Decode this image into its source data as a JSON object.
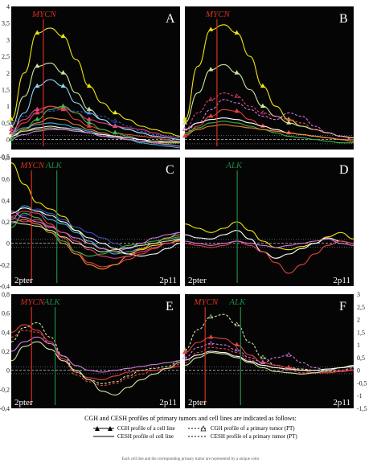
{
  "figure": {
    "legend_title": "CGH and CESH profiles of primary tumors and cell lines are indicated as follows:",
    "legend_items": [
      {
        "symbol": "solid-triangle",
        "label": "CGH profile of a cell line"
      },
      {
        "symbol": "solid-line",
        "label": "CESH profile of cell line"
      },
      {
        "symbol": "dashed-triangle",
        "label": "CGH profile of a primary tumor (PT)"
      },
      {
        "symbol": "dashed-line",
        "label": "CESH profile of a primary tumor (PT)"
      }
    ],
    "caption_fragment": "Each cell line and the corresponding primary tumor are represented by a unique color"
  },
  "colors": {
    "panel_bg": "#050505",
    "mycn": "#d9301e",
    "alk": "#1e8a4a",
    "baseline": "#d8d8d8"
  },
  "chart_data": [
    {
      "panel": "A",
      "type": "line",
      "ylim": [
        -0.3,
        4.0
      ],
      "yticks": [
        "4",
        "3,5",
        "3",
        "2,5",
        "2",
        "1,5",
        "1",
        "0,5",
        "0",
        "-0,5"
      ],
      "markers": [
        {
          "label": "MYCN",
          "x": 0.19,
          "color": "#d9301e"
        }
      ],
      "series": [
        {
          "values": [
            0.6,
            2.0,
            3.2,
            3.35,
            3.1,
            2.4,
            1.6,
            1.1,
            0.8,
            0.6,
            0.4,
            0.3,
            0.2,
            0.1
          ],
          "color": "#f2e60c",
          "marker": "triangle"
        },
        {
          "values": [
            0.4,
            1.3,
            2.2,
            2.3,
            2.0,
            1.4,
            0.9,
            0.6,
            0.4,
            0.3,
            0.2,
            0.1,
            0.05,
            0.0
          ],
          "color": "#cfe6a0",
          "marker": "triangle"
        },
        {
          "values": [
            0.2,
            0.8,
            1.6,
            1.8,
            1.6,
            1.1,
            0.8,
            0.6,
            0.4,
            0.3,
            0.2,
            0.1,
            0.05,
            0.0
          ],
          "color": "#8fd3f4",
          "marker": "triangle"
        },
        {
          "values": [
            0.3,
            0.6,
            0.9,
            1.0,
            0.95,
            0.8,
            0.6,
            0.5,
            0.4,
            0.35,
            0.3,
            0.2,
            0.1,
            0.05
          ],
          "color": "#e5407a",
          "marker": "triangle"
        },
        {
          "values": [
            0.5,
            0.7,
            0.8,
            0.85,
            0.9,
            0.85,
            0.8,
            0.7,
            0.55,
            0.4,
            0.25,
            0.15,
            0.1,
            0.05
          ],
          "color": "#3a4fc0",
          "marker": "triangle",
          "dashed": true
        },
        {
          "values": [
            0.2,
            0.5,
            0.8,
            1.0,
            0.9,
            0.6,
            0.4,
            0.3,
            0.2,
            0.15,
            0.1,
            0.05,
            0.0,
            -0.1
          ],
          "color": "#e64141",
          "marker": "triangle"
        },
        {
          "values": [
            0.0,
            0.3,
            0.6,
            0.9,
            1.0,
            0.8,
            0.5,
            0.3,
            0.2,
            0.1,
            0.0,
            -0.1,
            -0.15,
            -0.2
          ],
          "color": "#40b34a",
          "marker": "triangle"
        },
        {
          "values": [
            0.1,
            0.3,
            0.5,
            0.65,
            0.6,
            0.45,
            0.3,
            0.2,
            0.1,
            0.0,
            -0.05,
            -0.1,
            -0.1,
            -0.1
          ],
          "color": "#f28a2e"
        },
        {
          "values": [
            0.2,
            0.35,
            0.45,
            0.5,
            0.45,
            0.35,
            0.25,
            0.15,
            0.05,
            0.0,
            -0.1,
            -0.15,
            -0.2,
            -0.25
          ],
          "color": "#3fb5e0"
        },
        {
          "values": [
            0.1,
            0.25,
            0.35,
            0.4,
            0.35,
            0.3,
            0.2,
            0.15,
            0.1,
            0.05,
            0.0,
            -0.05,
            -0.05,
            -0.05
          ],
          "color": "#ffffff"
        },
        {
          "values": [
            0.15,
            0.25,
            0.3,
            0.35,
            0.3,
            0.25,
            0.2,
            0.1,
            0.05,
            0.0,
            -0.05,
            -0.05,
            -0.1,
            -0.1
          ],
          "color": "#a5d86b"
        },
        {
          "values": [
            0.05,
            0.15,
            0.25,
            0.3,
            0.3,
            0.25,
            0.2,
            0.1,
            0.05,
            0.0,
            -0.05,
            -0.1,
            -0.15,
            -0.2
          ],
          "color": "#d47ae0"
        }
      ]
    },
    {
      "panel": "B",
      "type": "line",
      "ylim": [
        -0.3,
        4.0
      ],
      "yticks": [],
      "markers": [
        {
          "label": "MYCN",
          "x": 0.19,
          "color": "#d9301e"
        }
      ],
      "series": [
        {
          "values": [
            0.6,
            2.2,
            3.3,
            3.45,
            3.2,
            2.5,
            1.6,
            1.0,
            0.6,
            0.4,
            0.3,
            0.2,
            0.1,
            0.05
          ],
          "color": "#f2e60c",
          "marker": "triangle"
        },
        {
          "values": [
            0.5,
            1.4,
            2.1,
            2.25,
            2.0,
            1.5,
            1.0,
            0.7,
            0.5,
            0.4,
            0.3,
            0.2,
            0.1,
            0.05
          ],
          "color": "#cfe6a0",
          "marker": "triangle"
        },
        {
          "values": [
            0.3,
            0.8,
            1.2,
            1.4,
            1.3,
            1.0,
            0.8,
            0.7,
            0.6,
            0.5,
            0.3,
            0.2,
            0.1,
            0.0
          ],
          "color": "#e5407a",
          "marker": "triangle",
          "dashed": true
        },
        {
          "values": [
            0.2,
            0.5,
            0.9,
            1.2,
            1.1,
            0.9,
            0.7,
            0.6,
            0.8,
            0.7,
            0.4,
            0.2,
            0.1,
            0.0
          ],
          "color": "#d47ae0",
          "dashed": true
        },
        {
          "values": [
            0.1,
            0.4,
            0.7,
            0.9,
            0.85,
            0.6,
            0.4,
            0.3,
            0.2,
            0.15,
            0.1,
            0.05,
            0.0,
            0.0
          ],
          "color": "#e64141",
          "marker": "triangle"
        },
        {
          "values": [
            0.3,
            0.5,
            0.6,
            0.65,
            0.6,
            0.5,
            0.4,
            0.3,
            0.2,
            0.15,
            0.1,
            0.05,
            0.0,
            -0.05
          ],
          "color": "#ffffff"
        },
        {
          "values": [
            0.2,
            0.35,
            0.5,
            0.55,
            0.5,
            0.4,
            0.3,
            0.2,
            0.1,
            0.05,
            0.0,
            -0.05,
            -0.1,
            -0.1
          ],
          "color": "#40b34a"
        },
        {
          "values": [
            0.15,
            0.3,
            0.4,
            0.45,
            0.4,
            0.35,
            0.3,
            0.25,
            0.2,
            0.15,
            0.1,
            0.05,
            0.0,
            -0.05
          ],
          "color": "#f28a2e"
        }
      ]
    },
    {
      "panel": "C",
      "type": "line",
      "ylim": [
        -0.4,
        0.8
      ],
      "yticks": [
        "0,8",
        "0,6",
        "0,4",
        "0,2",
        "0",
        "-0,2",
        "-0,4"
      ],
      "xlabels": [
        "2pter",
        "2p11"
      ],
      "markers": [
        {
          "label": "MYCN",
          "x": 0.12,
          "color": "#d9301e"
        },
        {
          "label": "ALK",
          "x": 0.27,
          "color": "#1e8a4a"
        }
      ],
      "series": [
        {
          "values": [
            0.75,
            0.55,
            0.38,
            0.32,
            0.25,
            0.12,
            0.0,
            -0.05,
            -0.08,
            -0.1,
            -0.06,
            -0.02,
            0.0,
            0.03
          ],
          "color": "#f2e60c"
        },
        {
          "values": [
            0.22,
            0.35,
            0.3,
            0.22,
            0.18,
            0.1,
            0.02,
            -0.05,
            -0.1,
            -0.08,
            -0.05,
            0.0,
            0.05,
            0.1
          ],
          "color": "#3fb5e0"
        },
        {
          "values": [
            0.28,
            0.33,
            0.3,
            0.26,
            0.2,
            0.12,
            0.05,
            0.0,
            -0.05,
            -0.1,
            -0.12,
            -0.1,
            -0.05,
            0.0
          ],
          "color": "#ffffff"
        },
        {
          "values": [
            0.25,
            0.3,
            0.28,
            0.18,
            0.05,
            -0.08,
            -0.18,
            -0.22,
            -0.2,
            -0.15,
            -0.1,
            -0.05,
            0.0,
            0.02
          ],
          "color": "#e64141"
        },
        {
          "values": [
            0.2,
            0.22,
            0.18,
            0.1,
            0.0,
            -0.1,
            -0.2,
            -0.24,
            -0.2,
            -0.12,
            -0.05,
            0.0,
            0.05,
            0.08
          ],
          "color": "#f28a2e"
        },
        {
          "values": [
            0.18,
            0.26,
            0.32,
            0.28,
            0.22,
            0.15,
            0.1,
            0.05,
            0.0,
            -0.05,
            -0.02,
            0.0,
            0.02,
            0.05
          ],
          "color": "#3a4fc0"
        },
        {
          "values": [
            0.15,
            0.28,
            0.24,
            0.12,
            0.02,
            -0.08,
            -0.12,
            -0.1,
            -0.06,
            -0.02,
            0.0,
            0.02,
            0.04,
            0.06
          ],
          "color": "#40b34a"
        },
        {
          "values": [
            0.3,
            0.24,
            0.2,
            0.15,
            0.1,
            0.05,
            0.0,
            -0.05,
            -0.08,
            -0.05,
            0.0,
            0.05,
            0.08,
            0.1
          ],
          "color": "#d47ae0"
        },
        {
          "values": [
            0.24,
            0.2,
            0.22,
            0.16,
            0.1,
            0.02,
            -0.06,
            -0.12,
            -0.14,
            -0.12,
            -0.08,
            -0.04,
            0.0,
            0.02
          ],
          "color": "#e5407a"
        },
        {
          "values": [
            0.2,
            0.18,
            0.16,
            0.12,
            0.06,
            0.0,
            -0.04,
            -0.08,
            -0.06,
            -0.04,
            -0.02,
            0.0,
            0.02,
            0.04
          ],
          "color": "#cfe6a0"
        }
      ]
    },
    {
      "panel": "D",
      "type": "line",
      "ylim": [
        -0.4,
        0.8
      ],
      "yticks": [],
      "xlabels": [
        "2pter",
        "2p11"
      ],
      "markers": [
        {
          "label": "ALK",
          "x": 0.31,
          "color": "#1e8a4a"
        }
      ],
      "series": [
        {
          "values": [
            0.18,
            0.14,
            0.1,
            0.14,
            0.2,
            0.12,
            0.02,
            -0.04,
            -0.06,
            -0.03,
            0.0,
            0.06,
            0.1,
            0.04
          ],
          "color": "#f2e60c"
        },
        {
          "values": [
            0.08,
            0.05,
            0.04,
            0.08,
            0.12,
            0.04,
            -0.08,
            -0.14,
            -0.1,
            -0.05,
            0.0,
            0.05,
            0.02,
            0.0
          ],
          "color": "#ffffff"
        },
        {
          "values": [
            0.0,
            -0.02,
            -0.04,
            -0.02,
            0.02,
            -0.02,
            -0.08,
            -0.18,
            -0.28,
            -0.2,
            -0.1,
            -0.02,
            0.02,
            0.0
          ],
          "color": "#e64141"
        },
        {
          "values": [
            0.02,
            0.0,
            -0.02,
            0.0,
            0.02,
            0.0,
            -0.02,
            -0.04,
            -0.02,
            0.0,
            0.02,
            0.04,
            0.0,
            -0.02
          ],
          "color": "#d47ae0"
        }
      ]
    },
    {
      "panel": "E",
      "type": "line",
      "ylim": [
        -0.4,
        0.8
      ],
      "yticks": [
        "0,8",
        "0,6",
        "0,4",
        "0,2",
        "0",
        "-0,2",
        "-0,4"
      ],
      "xlabels": [
        "2pter",
        "2p11"
      ],
      "markers": [
        {
          "label": "MYCN",
          "x": 0.12,
          "color": "#d9301e"
        },
        {
          "label": "ALK",
          "x": 0.26,
          "color": "#1e8a4a"
        }
      ],
      "series": [
        {
          "values": [
            0.4,
            0.48,
            0.42,
            0.3,
            0.12,
            -0.02,
            -0.08,
            -0.1,
            -0.06,
            -0.02,
            0.0,
            0.0,
            0.02,
            0.04
          ],
          "color": "#e64141"
        },
        {
          "values": [
            0.35,
            0.42,
            0.4,
            0.28,
            0.1,
            -0.05,
            -0.12,
            -0.16,
            -0.14,
            -0.08,
            -0.04,
            0.0,
            0.02,
            0.06
          ],
          "color": "#e64141",
          "dashed": true
        },
        {
          "values": [
            0.3,
            0.45,
            0.5,
            0.35,
            0.15,
            -0.02,
            -0.1,
            -0.14,
            -0.12,
            -0.06,
            0.0,
            0.02,
            0.04,
            0.1
          ],
          "color": "#cfe6a0",
          "dashed": true
        },
        {
          "values": [
            0.1,
            0.25,
            0.3,
            0.22,
            0.1,
            0.0,
            -0.1,
            -0.22,
            -0.26,
            -0.18,
            -0.1,
            -0.04,
            0.02,
            0.08
          ],
          "color": "#cfe6a0"
        },
        {
          "values": [
            0.2,
            0.3,
            0.35,
            0.28,
            0.15,
            0.05,
            0.0,
            -0.02,
            0.0,
            0.02,
            0.04,
            0.06,
            0.08,
            0.1
          ],
          "color": "#d47ae0"
        }
      ]
    },
    {
      "panel": "F",
      "type": "line",
      "ylim": [
        -1.5,
        3.0
      ],
      "yticks": [
        "3",
        "2,5",
        "2",
        "1,5",
        "1",
        "0,5",
        "0",
        "-0,5",
        "-1",
        "-1,5"
      ],
      "xlabels": [
        "2pter",
        "2p11"
      ],
      "markers": [
        {
          "label": "MYCN",
          "x": 0.12,
          "color": "#d9301e"
        },
        {
          "label": "ALK",
          "x": 0.33,
          "color": "#1e8a4a"
        }
      ],
      "series": [
        {
          "values": [
            0.8,
            1.6,
            2.1,
            2.2,
            1.8,
            1.1,
            0.5,
            0.2,
            0.1,
            0.05,
            0.0,
            -0.05,
            -0.05,
            0.0
          ],
          "color": "#cfe6a0",
          "marker": "triangle",
          "dashed": true
        },
        {
          "values": [
            0.7,
            1.1,
            1.3,
            1.25,
            1.0,
            0.6,
            0.3,
            0.2,
            0.1,
            0.0,
            -0.1,
            -0.1,
            -0.05,
            0.0
          ],
          "color": "#e64141",
          "marker": "triangle"
        },
        {
          "values": [
            0.5,
            0.9,
            1.05,
            1.0,
            0.8,
            0.5,
            0.3,
            0.5,
            0.6,
            0.3,
            0.1,
            0.0,
            0.0,
            0.1
          ],
          "color": "#d47ae0",
          "marker": "triangle",
          "dashed": true
        },
        {
          "values": [
            0.3,
            0.7,
            0.9,
            0.85,
            0.7,
            0.4,
            0.2,
            0.1,
            0.0,
            -0.1,
            -0.1,
            -0.05,
            0.0,
            0.05
          ],
          "color": "#e64141",
          "dashed": true
        },
        {
          "values": [
            0.2,
            0.5,
            0.7,
            0.65,
            0.5,
            0.3,
            0.1,
            -0.05,
            -0.1,
            -0.15,
            -0.1,
            0.0,
            0.1,
            0.2
          ],
          "color": "#cfe6a0"
        },
        {
          "values": [
            0.4,
            0.6,
            0.75,
            0.7,
            0.55,
            0.35,
            0.2,
            0.1,
            0.05,
            0.0,
            0.0,
            0.05,
            0.1,
            0.15
          ],
          "color": "#ffffff"
        }
      ]
    }
  ]
}
